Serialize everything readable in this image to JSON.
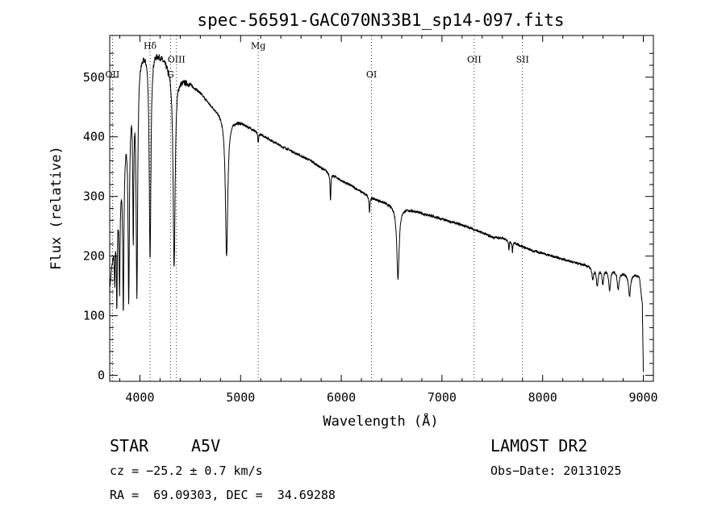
{
  "chart_data": {
    "type": "line",
    "title": "spec-56591-GAC070N33B1_sp14-097.fits",
    "xlabel": "Wavelength (Å)",
    "ylabel": "Flux (relative)",
    "xlim": [
      3700,
      9100
    ],
    "ylim": [
      -10,
      570
    ],
    "xticks": [
      4000,
      5000,
      6000,
      7000,
      8000,
      9000
    ],
    "yticks": [
      0,
      100,
      200,
      300,
      400,
      500
    ],
    "grid": false,
    "continuum": [
      [
        3700,
        150
      ],
      [
        3800,
        330
      ],
      [
        3900,
        470
      ],
      [
        4000,
        540
      ],
      [
        4100,
        555
      ],
      [
        4200,
        540
      ],
      [
        4300,
        520
      ],
      [
        4400,
        500
      ],
      [
        4500,
        490
      ],
      [
        4600,
        475
      ],
      [
        4700,
        455
      ],
      [
        4800,
        440
      ],
      [
        4900,
        430
      ],
      [
        5000,
        425
      ],
      [
        5100,
        415
      ],
      [
        5200,
        405
      ],
      [
        5300,
        395
      ],
      [
        5400,
        385
      ],
      [
        5500,
        377
      ],
      [
        5600,
        368
      ],
      [
        5700,
        360
      ],
      [
        5800,
        348
      ],
      [
        5900,
        338
      ],
      [
        6000,
        327
      ],
      [
        6100,
        318
      ],
      [
        6200,
        308
      ],
      [
        6300,
        298
      ],
      [
        6400,
        292
      ],
      [
        6500,
        286
      ],
      [
        6600,
        281
      ],
      [
        6700,
        277
      ],
      [
        6800,
        272
      ],
      [
        6900,
        267
      ],
      [
        7000,
        262
      ],
      [
        7100,
        257
      ],
      [
        7200,
        252
      ],
      [
        7300,
        246
      ],
      [
        7400,
        239
      ],
      [
        7500,
        232
      ],
      [
        7600,
        230
      ],
      [
        7700,
        224
      ],
      [
        7800,
        216
      ],
      [
        7900,
        209
      ],
      [
        8000,
        205
      ],
      [
        8100,
        200
      ],
      [
        8200,
        195
      ],
      [
        8300,
        190
      ],
      [
        8400,
        186
      ],
      [
        8500,
        182
      ],
      [
        8600,
        180
      ],
      [
        8700,
        178
      ],
      [
        8800,
        172
      ],
      [
        8900,
        170
      ],
      [
        8960,
        166
      ],
      [
        8990,
        120
      ],
      [
        9000,
        5
      ]
    ],
    "absorption_lines": [
      {
        "center": 3750,
        "depth": 80,
        "width": 5
      },
      {
        "center": 3771,
        "depth": 150,
        "width": 5
      },
      {
        "center": 3798,
        "depth": 170,
        "width": 6
      },
      {
        "center": 3835,
        "depth": 260,
        "width": 7
      },
      {
        "center": 3889,
        "depth": 320,
        "width": 8
      },
      {
        "center": 3934,
        "depth": 240,
        "width": 6
      },
      {
        "center": 3970,
        "depth": 380,
        "width": 9
      },
      {
        "center": 4101,
        "depth": 360,
        "width": 10
      },
      {
        "center": 4340,
        "depth": 330,
        "width": 12
      },
      {
        "center": 4861,
        "depth": 235,
        "width": 14
      },
      {
        "center": 5175,
        "depth": 18,
        "width": 5
      },
      {
        "center": 5893,
        "depth": 45,
        "width": 5
      },
      {
        "center": 6280,
        "depth": 25,
        "width": 5
      },
      {
        "center": 6563,
        "depth": 120,
        "width": 14
      },
      {
        "center": 7665,
        "depth": 15,
        "width": 4
      },
      {
        "center": 7700,
        "depth": 18,
        "width": 4
      },
      {
        "center": 8498,
        "depth": 20,
        "width": 10
      },
      {
        "center": 8542,
        "depth": 30,
        "width": 11
      },
      {
        "center": 8598,
        "depth": 25,
        "width": 10
      },
      {
        "center": 8665,
        "depth": 35,
        "width": 11
      },
      {
        "center": 8750,
        "depth": 30,
        "width": 11
      },
      {
        "center": 8863,
        "depth": 38,
        "width": 12
      }
    ],
    "spectral_lines": [
      {
        "label": "OII",
        "x": 3727,
        "label_y": 500
      },
      {
        "label": "Hδ",
        "x": 4101,
        "label_y": 548
      },
      {
        "label": "G",
        "x": 4304,
        "label_y": 500
      },
      {
        "label": "OIII",
        "x": 4363,
        "label_y": 525
      },
      {
        "label": "Mg",
        "x": 5175,
        "label_y": 548
      },
      {
        "label": "OI",
        "x": 6300,
        "label_y": 500
      },
      {
        "label": "OII",
        "x": 7320,
        "label_y": 525
      },
      {
        "label": "SII",
        "x": 7800,
        "label_y": 525
      }
    ]
  },
  "info": {
    "class": "STAR",
    "subclass": "A5V",
    "survey": "LAMOST DR2",
    "cz": "cz = −25.2 ± 0.7 km/s",
    "obs_date": "Obs−Date: 20131025",
    "coords": "RA =  69.09303, DEC =  34.69288"
  }
}
